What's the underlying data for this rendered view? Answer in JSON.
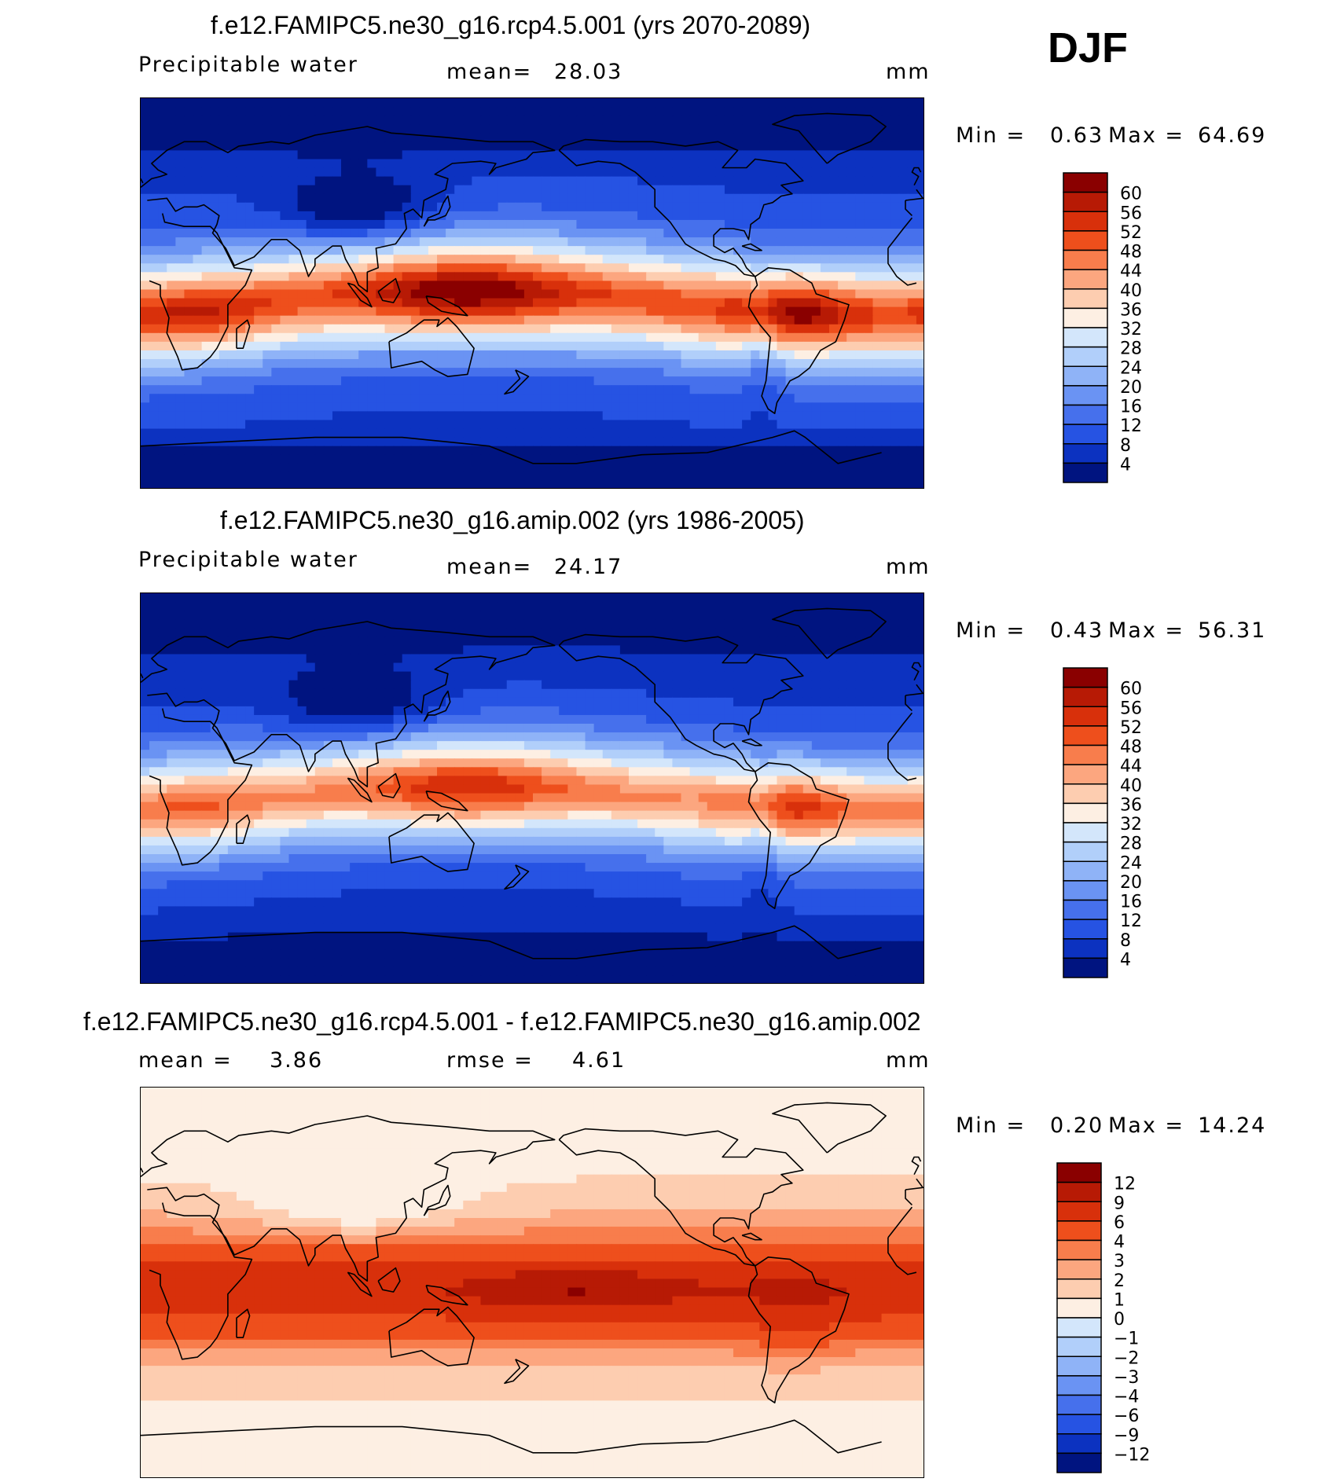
{
  "season": "DJF",
  "chart_data": [
    {
      "type": "heatmap",
      "title": "f.e12.FAMIPC5.ne30_g16.rcp4.5.001 (yrs 2070-2089)",
      "variable": "Precipitable water",
      "mean_label": "mean=",
      "mean": "28.03",
      "units": "mm",
      "min_label": "Min =",
      "min": "0.63",
      "max_label": "Max =",
      "max": "64.69",
      "colorbar_labels": [
        "60",
        "56",
        "52",
        "48",
        "44",
        "40",
        "36",
        "32",
        "28",
        "24",
        "20",
        "16",
        "12",
        "8",
        "4"
      ],
      "colorbar_colors": [
        "#8a0000",
        "#b71a05",
        "#d8300b",
        "#ee4f1c",
        "#f87d4c",
        "#fca67f",
        "#fdcdb0",
        "#fdefe3",
        "#d3e6fb",
        "#b1cffa",
        "#8fb3f7",
        "#6a93f3",
        "#4670ec",
        "#2653e3",
        "#0c32c0",
        "#001480"
      ],
      "field": "pw_future"
    },
    {
      "type": "heatmap",
      "title": "f.e12.FAMIPC5.ne30_g16.amip.002 (yrs 1986-2005)",
      "variable": "Precipitable water",
      "mean_label": "mean=",
      "mean": "24.17",
      "units": "mm",
      "min_label": "Min =",
      "min": "0.43",
      "max_label": "Max =",
      "max": "56.31",
      "colorbar_labels": [
        "60",
        "56",
        "52",
        "48",
        "44",
        "40",
        "36",
        "32",
        "28",
        "24",
        "20",
        "16",
        "12",
        "8",
        "4"
      ],
      "colorbar_colors": [
        "#8a0000",
        "#b71a05",
        "#d8300b",
        "#ee4f1c",
        "#f87d4c",
        "#fca67f",
        "#fdcdb0",
        "#fdefe3",
        "#d3e6fb",
        "#b1cffa",
        "#8fb3f7",
        "#6a93f3",
        "#4670ec",
        "#2653e3",
        "#0c32c0",
        "#001480"
      ],
      "field": "pw_present"
    },
    {
      "type": "heatmap",
      "title": "f.e12.FAMIPC5.ne30_g16.rcp4.5.001 - f.e12.FAMIPC5.ne30_g16.amip.002",
      "mean_label": "mean =",
      "mean": "3.86",
      "rmse_label": "rmse =",
      "rmse": "4.61",
      "units": "mm",
      "min_label": "Min =",
      "min": "0.20",
      "max_label": "Max =",
      "max": "14.24",
      "colorbar_labels": [
        "12",
        "9",
        "6",
        "4",
        "3",
        "2",
        "1",
        "0",
        "−1",
        "−2",
        "−3",
        "−4",
        "−6",
        "−9",
        "−12"
      ],
      "colorbar_colors": [
        "#8a0000",
        "#b71a05",
        "#d8300b",
        "#ee4f1c",
        "#f87d4c",
        "#fca67f",
        "#fdcdb0",
        "#fdefe3",
        "#d3e6fb",
        "#b1cffa",
        "#8fb3f7",
        "#6a93f3",
        "#4670ec",
        "#2653e3",
        "#0c32c0",
        "#001480"
      ],
      "field": "pw_diff"
    }
  ]
}
